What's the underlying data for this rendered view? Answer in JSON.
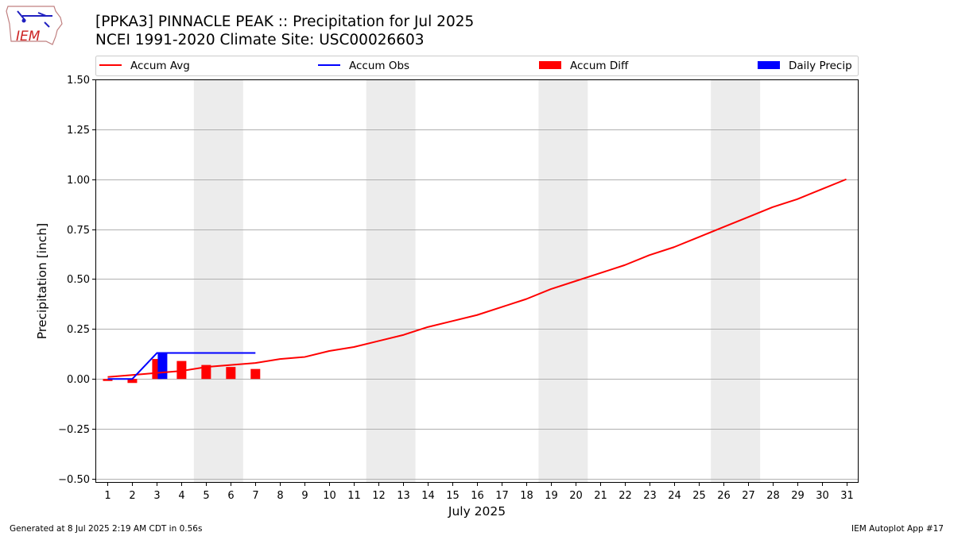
{
  "page": {
    "title_line1": "[PPKA3] PINNACLE PEAK :: Precipitation for Jul 2025",
    "title_line2": "NCEI 1991-2020 Climate Site: USC00026603",
    "footer_left": "Generated at 8 Jul 2025 2:19 AM CDT in 0.56s",
    "footer_right": "IEM Autoplot App #17",
    "logo_text": "IEM"
  },
  "chart_data": {
    "type": "line",
    "xlabel": "July 2025",
    "ylabel": "Precipitation [inch]",
    "x": [
      1,
      2,
      3,
      4,
      5,
      6,
      7,
      8,
      9,
      10,
      11,
      12,
      13,
      14,
      15,
      16,
      17,
      18,
      19,
      20,
      21,
      22,
      23,
      24,
      25,
      26,
      27,
      28,
      29,
      30,
      31
    ],
    "xlim": [
      0.5,
      31.5
    ],
    "ylim": [
      -0.52,
      1.5
    ],
    "yticks": [
      -0.5,
      -0.25,
      0.0,
      0.25,
      0.5,
      0.75,
      1.0,
      1.25,
      1.5
    ],
    "ytick_labels": [
      "−0.50",
      "−0.25",
      "0.00",
      "0.25",
      "0.50",
      "0.75",
      "1.00",
      "1.25",
      "1.50"
    ],
    "grid": "horizontal",
    "weekend_bands": [
      [
        4.5,
        6.5
      ],
      [
        11.5,
        13.5
      ],
      [
        18.5,
        20.5
      ],
      [
        25.5,
        27.5
      ]
    ],
    "legend": {
      "placement": "top",
      "entries": [
        {
          "label": "Accum Avg",
          "kind": "line",
          "color": "#ff0000"
        },
        {
          "label": "Accum Obs",
          "kind": "line",
          "color": "#0000ff"
        },
        {
          "label": "Accum Diff",
          "kind": "bar",
          "color": "#ff0000"
        },
        {
          "label": "Daily Precip",
          "kind": "bar",
          "color": "#0000ff"
        }
      ]
    },
    "series": [
      {
        "name": "Accum Avg",
        "type": "line",
        "color": "#ff0000",
        "values": [
          0.01,
          0.02,
          0.03,
          0.04,
          0.06,
          0.07,
          0.08,
          0.1,
          0.11,
          0.14,
          0.16,
          0.19,
          0.22,
          0.26,
          0.29,
          0.32,
          0.36,
          0.4,
          0.45,
          0.49,
          0.53,
          0.57,
          0.62,
          0.66,
          0.71,
          0.76,
          0.81,
          0.86,
          0.9,
          0.95,
          1.0
        ]
      },
      {
        "name": "Accum Obs",
        "type": "line",
        "color": "#0000ff",
        "x": [
          1,
          2,
          3,
          4,
          5,
          6,
          7
        ],
        "values": [
          0.0,
          0.0,
          0.13,
          0.13,
          0.13,
          0.13,
          0.13
        ]
      },
      {
        "name": "Accum Diff",
        "type": "bar",
        "color": "#ff0000",
        "x": [
          1,
          2,
          3,
          4,
          5,
          6,
          7
        ],
        "values": [
          -0.01,
          -0.02,
          0.1,
          0.09,
          0.07,
          0.06,
          0.05
        ]
      },
      {
        "name": "Daily Precip",
        "type": "bar",
        "color": "#0000ff",
        "x": [
          3
        ],
        "values": [
          0.13
        ]
      }
    ]
  }
}
